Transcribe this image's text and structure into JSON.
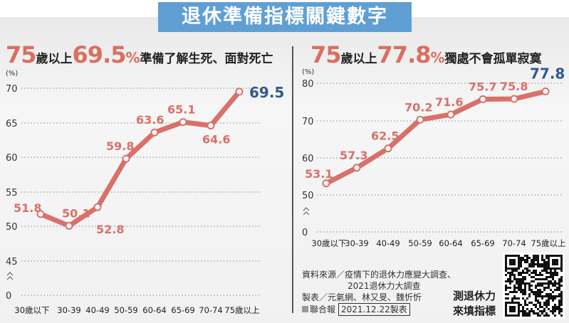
{
  "title": "退休準備指標關鍵數字",
  "chart_data": [
    {
      "type": "line",
      "headline": {
        "age": "75",
        "age_suffix": "歲以上",
        "value": "69.5",
        "pct": "%",
        "text": "準備了解生死、面對死亡"
      },
      "ylabel": "(%)",
      "yticks": [
        0,
        45,
        50,
        55,
        60,
        65,
        70
      ],
      "ylim": [
        45,
        70
      ],
      "axis_break": true,
      "categories": [
        "30歲以下",
        "30-39",
        "40-49",
        "50-59",
        "60-64",
        "65-69",
        "70-74",
        "75歲以上"
      ],
      "values": [
        51.8,
        50.1,
        52.8,
        59.8,
        63.6,
        65.1,
        64.6,
        69.5
      ],
      "highlight_last": true,
      "line_color": "#d9706a",
      "label_color": "#d9706a",
      "highlight_color": "#2f5b8f"
    },
    {
      "type": "line",
      "headline": {
        "age": "75",
        "age_suffix": "歲以上",
        "value": "77.8",
        "pct": "%",
        "text": "獨處不會孤單寂寞"
      },
      "ylabel": "(%)",
      "yticks": [
        0,
        50,
        60,
        70,
        80
      ],
      "ylim": [
        50,
        80
      ],
      "axis_break": true,
      "categories": [
        "30歲以下",
        "30-39",
        "40-49",
        "50-59",
        "60-64",
        "65-69",
        "70-74",
        "75歲以上"
      ],
      "values": [
        53.1,
        57.3,
        62.5,
        70.2,
        71.6,
        75.7,
        75.8,
        77.8
      ],
      "highlight_last": true,
      "line_color": "#d9706a",
      "label_color": "#d9706a",
      "highlight_color": "#2f5b8f"
    }
  ],
  "footer": {
    "source_line1": "資料來源／疫情下的退休力應變大調查、",
    "source_line2": "2021退休力大調查",
    "credits": "製表／元氣網、林又旻、魏忻忻",
    "publisher": "聯合報",
    "date": "2021.12.22製表",
    "qr_line1": "測退休力",
    "qr_line2": "來填指標"
  }
}
